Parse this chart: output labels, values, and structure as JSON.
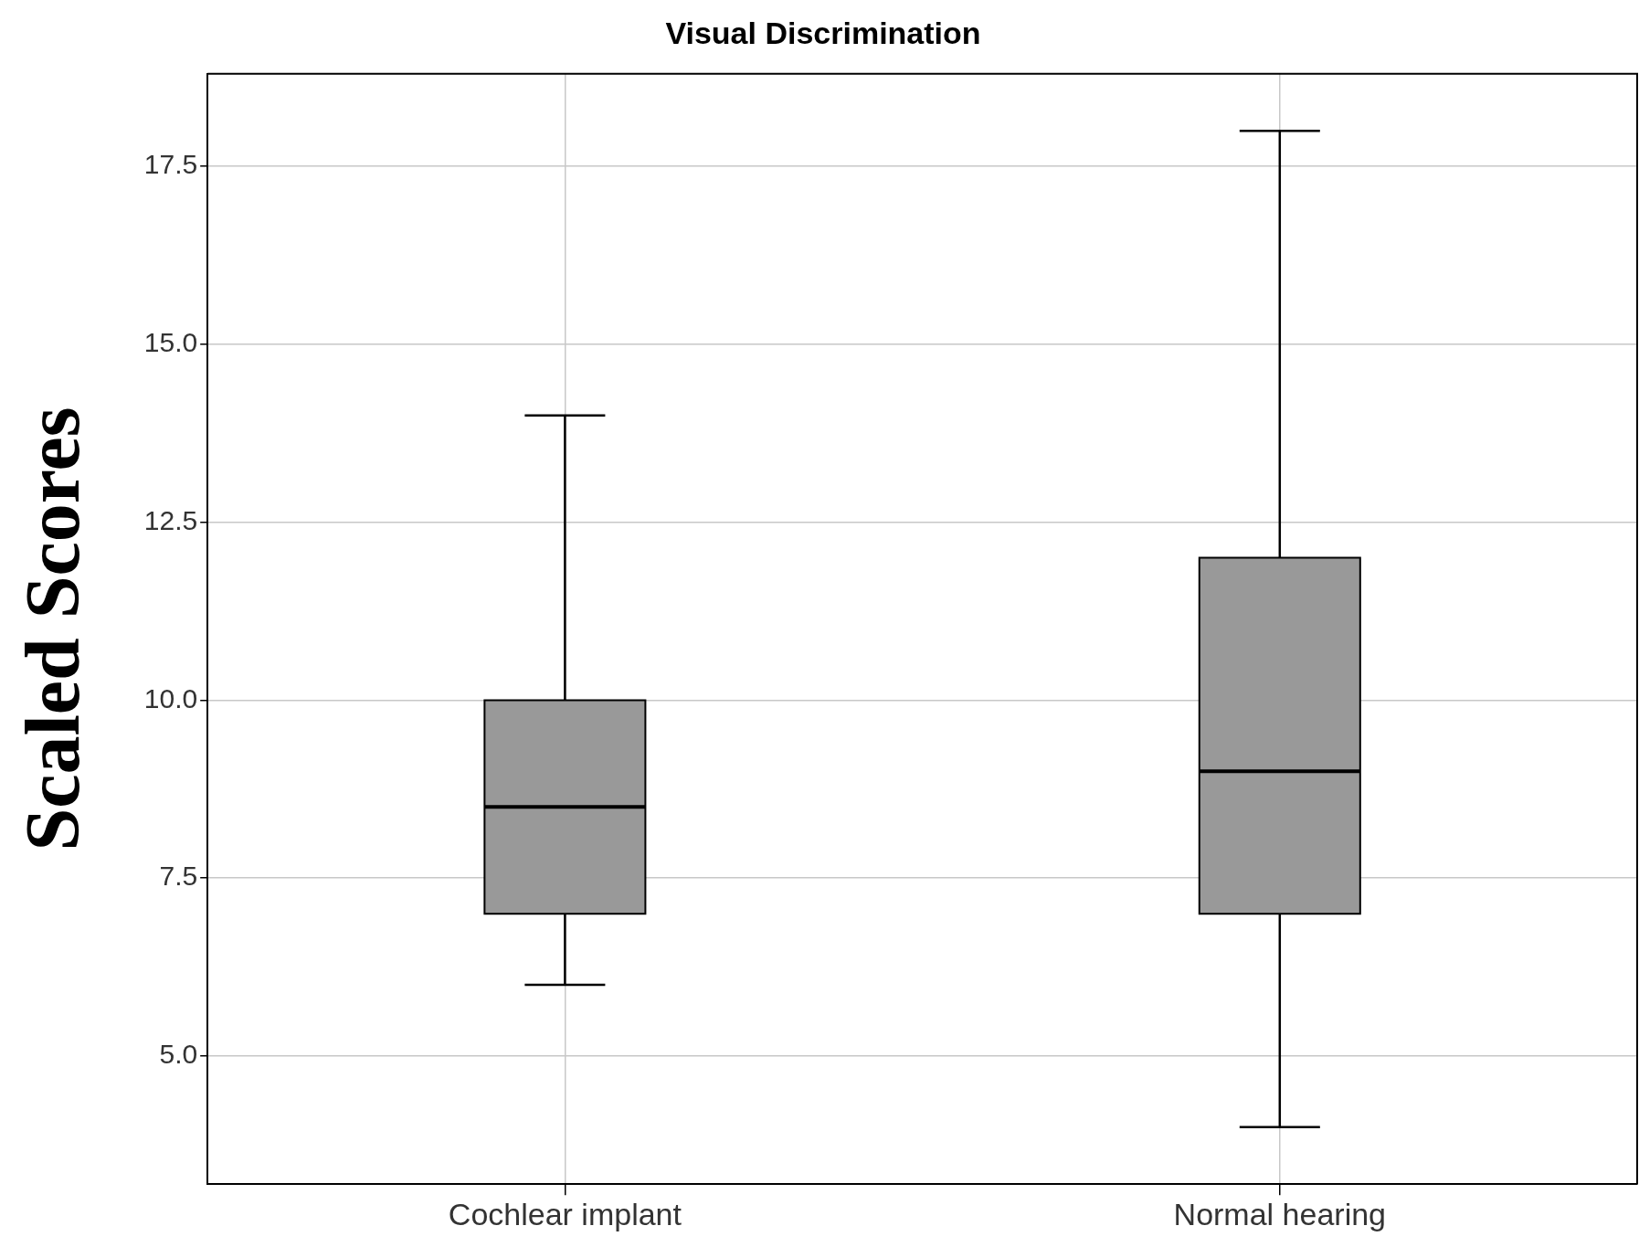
{
  "chart_data": {
    "type": "box",
    "title": "Visual Discrimination",
    "ylabel": "Scaled Scores",
    "categories": [
      "Cochlear implant",
      "Normal hearing"
    ],
    "boxes": [
      {
        "low": 6,
        "q1": 7,
        "median": 8.5,
        "q3": 10,
        "high": 14
      },
      {
        "low": 4,
        "q1": 7,
        "median": 9,
        "q3": 12,
        "high": 18
      }
    ],
    "color": "#999999",
    "ylim": [
      3.2,
      18.8
    ],
    "yticks": [
      {
        "value": 5,
        "label": "5.0"
      },
      {
        "value": 7.5,
        "label": "7.5"
      },
      {
        "value": 10,
        "label": "10.0"
      },
      {
        "value": 12.5,
        "label": "12.5"
      },
      {
        "value": 15,
        "label": "15.0"
      },
      {
        "value": 17.5,
        "label": "17.5"
      }
    ],
    "grid": true
  }
}
